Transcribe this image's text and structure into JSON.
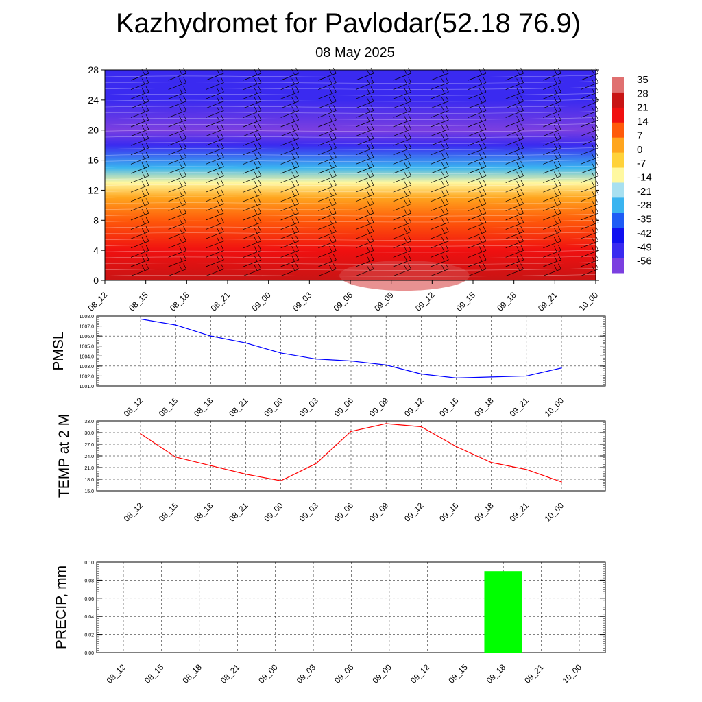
{
  "title": "Kazhydromet for Pavlodar(52.18 76.9)",
  "subtitle": "08 May 2025",
  "colors": {
    "pmsl_line": "#0000ff",
    "temp_line": "#ff0000",
    "precip_bar": "#00ff00",
    "colorbar": [
      "#7b3fe0",
      "#3a2af0",
      "#1010f0",
      "#1e5cf5",
      "#3ab4f0",
      "#a8e0f0",
      "#fff8a0",
      "#ffd23a",
      "#ffa51e",
      "#ff5a0a",
      "#f01010",
      "#c81414",
      "#e07070"
    ]
  },
  "chart_data": [
    {
      "type": "heatmap",
      "name": "cross-section",
      "x_ticks": [
        "08_12",
        "08_15",
        "08_18",
        "08_21",
        "09_00",
        "09_03",
        "09_06",
        "09_09",
        "09_12",
        "09_15",
        "09_18",
        "09_21",
        "10_00"
      ],
      "y_ticks": [
        0,
        4,
        8,
        12,
        16,
        20,
        24,
        28
      ],
      "ylim": [
        0,
        28
      ],
      "colorbar_labels": [
        "35",
        "28",
        "21",
        "14",
        "7",
        "0",
        "-7",
        "-14",
        "-21",
        "-28",
        "-35",
        "-42",
        "-49",
        "-56"
      ],
      "colorbar_range": [
        -63,
        42
      ],
      "layers": [
        {
          "level": 0,
          "value": 35
        },
        {
          "level": 4,
          "value": 28
        },
        {
          "level": 8,
          "value": 18
        },
        {
          "level": 11,
          "value": 5
        },
        {
          "level": 13,
          "value": -10
        },
        {
          "level": 15,
          "value": -30
        },
        {
          "level": 18,
          "value": -50
        },
        {
          "level": 20,
          "value": -60
        },
        {
          "level": 24,
          "value": -56
        },
        {
          "level": 28,
          "value": -52
        }
      ],
      "wind_barbs": true
    },
    {
      "type": "line",
      "name": "pmsl",
      "ylabel": "PMSL",
      "ylim": [
        1001.0,
        1008.0
      ],
      "y_ticks": [
        "1001.0",
        "1002.0",
        "1003.0",
        "1004.0",
        "1005.0",
        "1006.0",
        "1007.0",
        "1008.0"
      ],
      "categories": [
        "08_12",
        "08_15",
        "08_18",
        "08_21",
        "09_00",
        "09_03",
        "09_06",
        "09_09",
        "09_12",
        "09_15",
        "09_18",
        "09_21",
        "10_00"
      ],
      "values": [
        1007.7,
        1007.1,
        1006.0,
        1005.3,
        1004.3,
        1003.7,
        1003.5,
        1003.1,
        1002.2,
        1001.8,
        1001.9,
        1002.0,
        1002.8
      ],
      "grid": true
    },
    {
      "type": "line",
      "name": "temp",
      "ylabel": "TEMP at 2 M",
      "ylim": [
        15.0,
        33.0
      ],
      "y_ticks": [
        "15.0",
        "18.0",
        "21.0",
        "24.0",
        "27.0",
        "30.0",
        "33.0"
      ],
      "categories": [
        "08_12",
        "08_15",
        "08_18",
        "08_21",
        "09_00",
        "09_03",
        "09_06",
        "09_09",
        "09_12",
        "09_15",
        "09_18",
        "09_21",
        "10_00"
      ],
      "values": [
        29.7,
        23.7,
        21.5,
        19.3,
        17.6,
        22.0,
        30.3,
        32.3,
        31.5,
        26.4,
        22.3,
        20.5,
        17.3
      ],
      "grid": true
    },
    {
      "type": "bar",
      "name": "precip",
      "ylabel": "PRECIP, mm",
      "ylim": [
        0.0,
        0.1
      ],
      "y_ticks": [
        "0.00",
        "0.02",
        "0.04",
        "0.06",
        "0.08",
        "0.10"
      ],
      "categories": [
        "08_12",
        "08_15",
        "08_18",
        "08_21",
        "09_00",
        "09_03",
        "09_06",
        "09_09",
        "09_12",
        "09_15",
        "09_18",
        "09_21",
        "10_00"
      ],
      "values": [
        0,
        0,
        0,
        0,
        0,
        0,
        0,
        0,
        0,
        0,
        0.09,
        0,
        0
      ],
      "grid": true
    }
  ]
}
